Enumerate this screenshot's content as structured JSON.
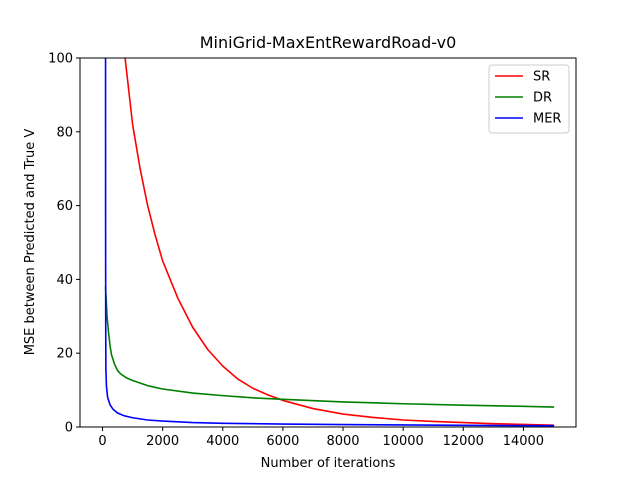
{
  "chart_data": {
    "type": "line",
    "title": "MiniGrid-MaxEntRewardRoad-v0",
    "xlabel": "Number of iterations",
    "ylabel": "MSE between Predicted and True V",
    "xlim": [
      -750,
      15750
    ],
    "ylim": [
      0,
      100
    ],
    "xticks": [
      0,
      2000,
      4000,
      6000,
      8000,
      10000,
      12000,
      14000
    ],
    "yticks": [
      0,
      20,
      40,
      60,
      80,
      100
    ],
    "grid": false,
    "legend_position": "upper right",
    "series": [
      {
        "name": "SR",
        "color": "#ff0000",
        "x": [
          750,
          1000,
          1250,
          1500,
          1750,
          2000,
          2500,
          3000,
          3500,
          4000,
          4500,
          5000,
          5500,
          6000,
          7000,
          8000,
          9000,
          10000,
          11000,
          12000,
          13000,
          14000,
          15000
        ],
        "y": [
          100,
          82,
          70,
          60,
          52,
          45,
          35,
          27,
          21,
          16.5,
          13,
          10.5,
          8.7,
          7.2,
          5,
          3.5,
          2.6,
          1.9,
          1.5,
          1.2,
          0.9,
          0.7,
          0.5
        ]
      },
      {
        "name": "DR",
        "color": "#008000",
        "x": [
          100,
          150,
          200,
          250,
          300,
          400,
          500,
          600,
          800,
          1000,
          1500,
          2000,
          3000,
          4000,
          5000,
          6000,
          8000,
          10000,
          12000,
          14000,
          15000
        ],
        "y": [
          38,
          30,
          25.5,
          22,
          19.5,
          17,
          15.3,
          14.4,
          13.3,
          12.6,
          11.2,
          10.3,
          9.2,
          8.5,
          7.9,
          7.5,
          6.8,
          6.3,
          5.9,
          5.6,
          5.4
        ]
      },
      {
        "name": "MER",
        "color": "#0000ff",
        "x": [
          100,
          101,
          105,
          110,
          130,
          170,
          250,
          350,
          500,
          700,
          1000,
          1500,
          2000,
          3000,
          4000,
          6000,
          8000,
          10000,
          12000,
          15000
        ],
        "y": [
          100,
          60,
          30,
          16,
          11,
          8,
          6,
          4.8,
          3.8,
          3.1,
          2.5,
          1.9,
          1.6,
          1.2,
          1,
          0.8,
          0.65,
          0.55,
          0.45,
          0.35
        ]
      }
    ]
  }
}
